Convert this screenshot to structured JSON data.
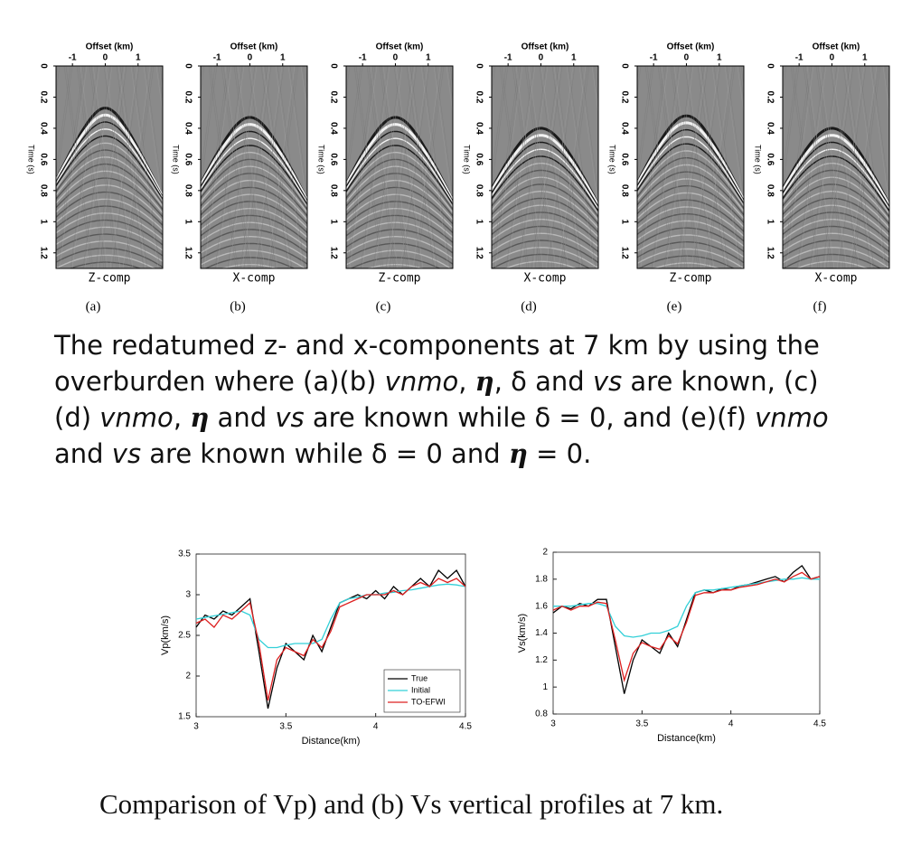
{
  "gathers": {
    "offset_label": "Offset (km)",
    "time_label": "Time (s)",
    "offset_lim": [
      -1.5,
      1.75
    ],
    "offset_ticks": [
      -1,
      0,
      1
    ],
    "time_lim": [
      0,
      1.3
    ],
    "time_ticks": [
      0,
      0.2,
      0.4,
      0.6,
      0.8,
      1,
      1.2
    ],
    "panels": [
      {
        "component": "Z-comp",
        "tag": "(a)"
      },
      {
        "component": "X-comp",
        "tag": "(b)"
      },
      {
        "component": "Z-comp",
        "tag": "(c)"
      },
      {
        "component": "X-comp",
        "tag": "(d)"
      },
      {
        "component": "Z-comp",
        "tag": "(e)"
      },
      {
        "component": "X-comp",
        "tag": "(f)"
      }
    ]
  },
  "caption_top": [
    {
      "text": "The redatumed z- and x-components at 7 km by using the overburden where (a)(b) "
    },
    {
      "text": "vnmo",
      "style": "italic"
    },
    {
      "text": ", "
    },
    {
      "text": "η",
      "style": "bold-italic"
    },
    {
      "text": ",  δ and "
    },
    {
      "text": "vs",
      "style": "italic"
    },
    {
      "text": " are known, (c)(d) "
    },
    {
      "text": "vnmo",
      "style": "italic"
    },
    {
      "text": ", "
    },
    {
      "text": "η",
      "style": "bold-italic"
    },
    {
      "text": " and "
    },
    {
      "text": "vs",
      "style": "italic"
    },
    {
      "text": " are known while δ = 0, and (e)(f) "
    },
    {
      "text": "vnmo",
      "style": "italic"
    },
    {
      "text": " and "
    },
    {
      "text": "vs",
      "style": "italic"
    },
    {
      "text": " are known while δ = 0 and "
    },
    {
      "text": "η",
      "style": "bold-italic"
    },
    {
      "text": " = 0."
    }
  ],
  "chart_data": [
    {
      "type": "line",
      "xlabel": "Distance(km)",
      "ylabel": "Vp(km/s)",
      "xlim": [
        3,
        4.5
      ],
      "xticks": [
        3,
        3.5,
        4,
        4.5
      ],
      "ylim": [
        1.5,
        3.5
      ],
      "yticks": [
        1.5,
        2,
        2.5,
        3,
        3.5
      ],
      "legend": "lower right",
      "x": [
        3,
        3.05,
        3.1,
        3.15,
        3.2,
        3.25,
        3.3,
        3.35,
        3.4,
        3.45,
        3.5,
        3.55,
        3.6,
        3.65,
        3.7,
        3.75,
        3.8,
        3.85,
        3.9,
        3.95,
        4,
        4.05,
        4.1,
        4.15,
        4.2,
        4.25,
        4.3,
        4.35,
        4.4,
        4.45,
        4.5
      ],
      "series": [
        {
          "name": "True",
          "color": "#000000",
          "values": [
            2.6,
            2.75,
            2.7,
            2.8,
            2.75,
            2.85,
            2.95,
            2.3,
            1.6,
            2.1,
            2.4,
            2.3,
            2.2,
            2.5,
            2.3,
            2.6,
            2.9,
            2.95,
            3.0,
            2.95,
            3.05,
            2.95,
            3.1,
            3.0,
            3.1,
            3.2,
            3.1,
            3.3,
            3.2,
            3.3,
            3.1
          ]
        },
        {
          "name": "Initial",
          "color": "#33d0d8",
          "values": [
            2.7,
            2.72,
            2.74,
            2.76,
            2.78,
            2.8,
            2.75,
            2.45,
            2.35,
            2.35,
            2.38,
            2.4,
            2.4,
            2.4,
            2.45,
            2.7,
            2.9,
            2.95,
            2.97,
            3.0,
            3.0,
            3.02,
            3.03,
            3.05,
            3.06,
            3.08,
            3.1,
            3.12,
            3.13,
            3.12,
            3.1
          ]
        },
        {
          "name": "TO-EFWI",
          "color": "#dd2020",
          "values": [
            2.65,
            2.7,
            2.6,
            2.75,
            2.7,
            2.8,
            2.9,
            2.4,
            1.7,
            2.2,
            2.35,
            2.3,
            2.25,
            2.45,
            2.35,
            2.55,
            2.85,
            2.9,
            2.95,
            3.0,
            3.0,
            3.0,
            3.05,
            3.0,
            3.1,
            3.15,
            3.1,
            3.2,
            3.15,
            3.2,
            3.1
          ]
        }
      ]
    },
    {
      "type": "line",
      "xlabel": "Distance(km)",
      "ylabel": "Vs(km/s)",
      "xlim": [
        3,
        4.5
      ],
      "xticks": [
        3,
        3.5,
        4,
        4.5
      ],
      "ylim": [
        0.8,
        2
      ],
      "yticks": [
        0.8,
        1,
        1.2,
        1.4,
        1.6,
        1.8,
        2
      ],
      "x": [
        3,
        3.05,
        3.1,
        3.15,
        3.2,
        3.25,
        3.3,
        3.35,
        3.4,
        3.45,
        3.5,
        3.55,
        3.6,
        3.65,
        3.7,
        3.75,
        3.8,
        3.85,
        3.9,
        3.95,
        4,
        4.05,
        4.1,
        4.15,
        4.2,
        4.25,
        4.3,
        4.35,
        4.4,
        4.45,
        4.5
      ],
      "series": [
        {
          "color": "#000000",
          "values": [
            1.55,
            1.6,
            1.58,
            1.62,
            1.6,
            1.65,
            1.65,
            1.3,
            0.95,
            1.2,
            1.35,
            1.3,
            1.25,
            1.4,
            1.3,
            1.5,
            1.7,
            1.72,
            1.7,
            1.73,
            1.72,
            1.75,
            1.76,
            1.78,
            1.8,
            1.82,
            1.78,
            1.85,
            1.9,
            1.8,
            1.82
          ]
        },
        {
          "color": "#33d0d8",
          "values": [
            1.6,
            1.6,
            1.6,
            1.61,
            1.62,
            1.62,
            1.6,
            1.45,
            1.38,
            1.37,
            1.38,
            1.4,
            1.4,
            1.42,
            1.45,
            1.6,
            1.7,
            1.72,
            1.72,
            1.73,
            1.74,
            1.75,
            1.76,
            1.77,
            1.78,
            1.79,
            1.8,
            1.8,
            1.81,
            1.8,
            1.8
          ]
        },
        {
          "color": "#dd2020",
          "values": [
            1.57,
            1.6,
            1.57,
            1.6,
            1.6,
            1.63,
            1.62,
            1.35,
            1.05,
            1.25,
            1.33,
            1.3,
            1.28,
            1.38,
            1.32,
            1.48,
            1.68,
            1.7,
            1.7,
            1.72,
            1.72,
            1.74,
            1.75,
            1.76,
            1.78,
            1.8,
            1.78,
            1.82,
            1.85,
            1.8,
            1.82
          ]
        }
      ]
    }
  ],
  "caption_bottom": "Comparison of Vp) and (b) Vs vertical profiles at 7 km."
}
